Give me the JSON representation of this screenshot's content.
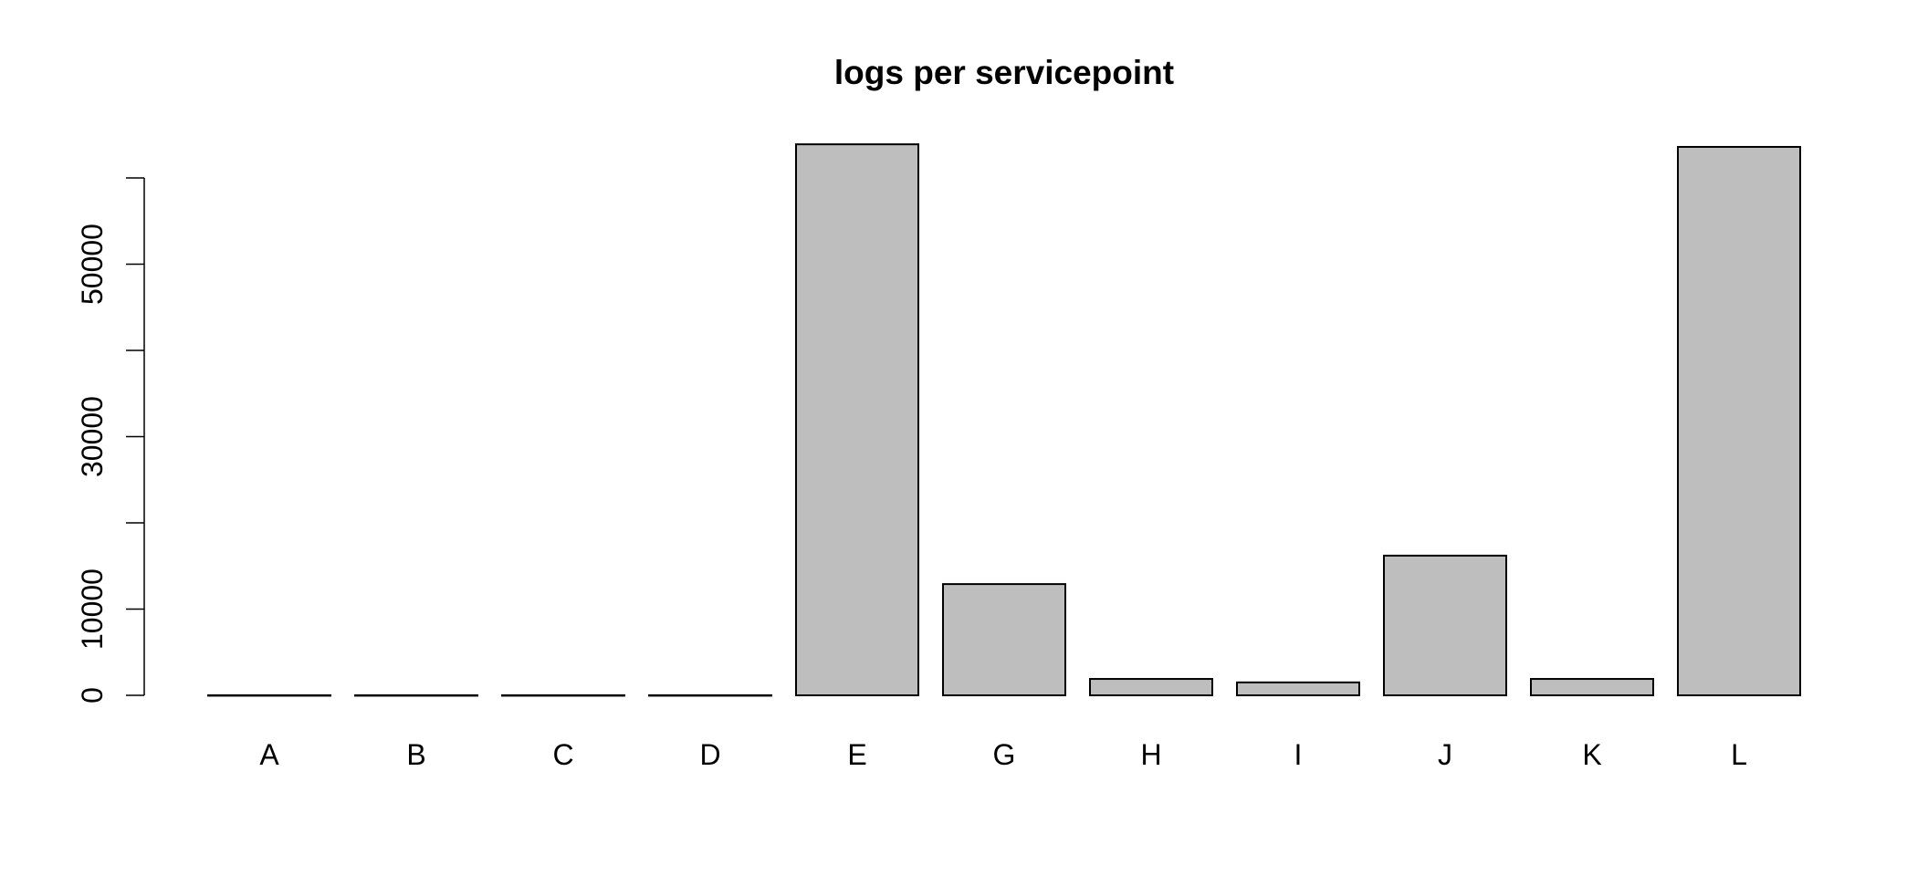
{
  "chart_data": {
    "type": "bar",
    "title": "logs per servicepoint",
    "xlabel": "",
    "ylabel": "",
    "categories": [
      "A",
      "B",
      "C",
      "D",
      "E",
      "G",
      "H",
      "I",
      "J",
      "K",
      "L"
    ],
    "values": [
      10,
      10,
      10,
      10,
      63900,
      12900,
      1900,
      1500,
      16200,
      1900,
      63600
    ],
    "ylim": [
      0,
      60000
    ],
    "yticks": [
      0,
      10000,
      20000,
      30000,
      40000,
      50000,
      60000
    ],
    "ytick_labels": [
      "0",
      "10000",
      "",
      "30000",
      "",
      "50000",
      ""
    ],
    "bar_color": "#bebebe",
    "edge_color": "#000000",
    "grid": false,
    "legend": "none"
  }
}
